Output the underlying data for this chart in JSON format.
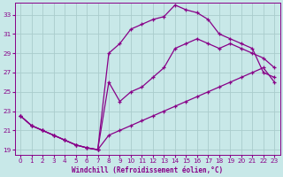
{
  "xlabel": "Windchill (Refroidissement éolien,°C)",
  "background_color": "#c8e8e8",
  "grid_color": "#aacccc",
  "line_color": "#880088",
  "xlim": [
    -0.5,
    23.5
  ],
  "ylim": [
    18.5,
    34.2
  ],
  "xticks": [
    0,
    1,
    2,
    3,
    4,
    5,
    6,
    7,
    8,
    9,
    10,
    11,
    12,
    13,
    14,
    15,
    16,
    17,
    18,
    19,
    20,
    21,
    22,
    23
  ],
  "yticks": [
    19,
    21,
    23,
    25,
    27,
    29,
    31,
    33
  ],
  "line1_x": [
    0,
    1,
    2,
    3,
    4,
    5,
    6,
    7,
    8,
    9,
    10,
    11,
    12,
    13,
    14,
    15,
    16,
    17,
    18,
    19,
    20,
    21,
    22,
    23
  ],
  "line1_y": [
    22.5,
    21.5,
    21.0,
    20.5,
    20.0,
    19.5,
    19.2,
    19.0,
    29.0,
    30.0,
    31.5,
    32.0,
    32.5,
    32.8,
    34.0,
    33.5,
    33.2,
    32.5,
    31.0,
    30.5,
    30.0,
    29.5,
    27.0,
    26.5
  ],
  "line2_x": [
    0,
    1,
    2,
    3,
    4,
    5,
    6,
    7,
    8,
    9,
    10,
    11,
    12,
    13,
    14,
    15,
    16,
    17,
    18,
    19,
    20,
    21,
    22,
    23
  ],
  "line2_y": [
    22.5,
    21.5,
    21.0,
    20.5,
    20.0,
    19.5,
    19.2,
    19.0,
    26.0,
    24.0,
    25.0,
    25.5,
    26.5,
    27.5,
    29.5,
    30.0,
    30.5,
    30.0,
    29.5,
    30.0,
    29.5,
    29.0,
    28.5,
    27.5
  ],
  "line3_x": [
    0,
    1,
    2,
    3,
    4,
    5,
    6,
    7,
    8,
    9,
    10,
    11,
    12,
    13,
    14,
    15,
    16,
    17,
    18,
    19,
    20,
    21,
    22,
    23
  ],
  "line3_y": [
    22.5,
    21.5,
    21.0,
    20.5,
    20.0,
    19.5,
    19.2,
    19.0,
    20.5,
    21.0,
    21.5,
    22.0,
    22.5,
    23.0,
    23.5,
    24.0,
    24.5,
    25.0,
    25.5,
    26.0,
    26.5,
    27.0,
    27.5,
    26.0
  ]
}
